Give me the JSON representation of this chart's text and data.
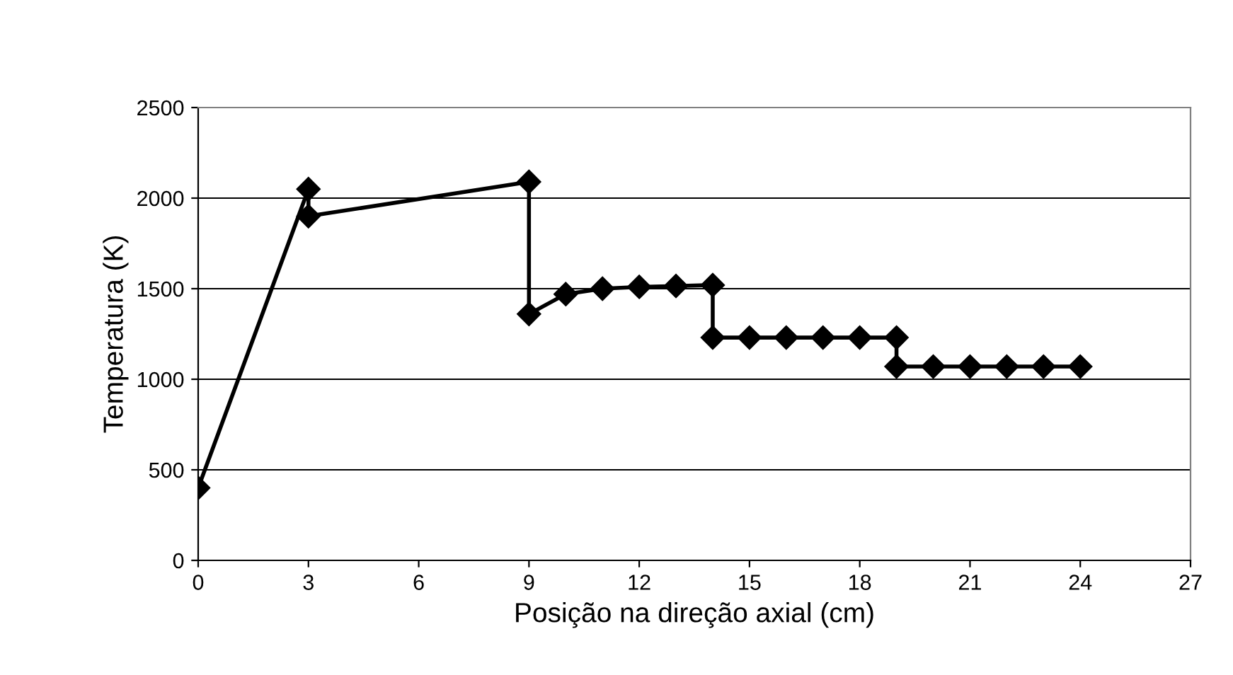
{
  "chart_data": {
    "type": "line",
    "xlabel": "Posição na direção axial (cm)",
    "ylabel": "Temperatura (K)",
    "x": [
      0,
      3,
      3,
      9,
      9,
      10,
      11,
      12,
      13,
      14,
      14,
      15,
      16,
      17,
      18,
      19,
      19,
      20,
      21,
      22,
      23,
      24
    ],
    "series": [
      {
        "color": "#000000",
        "values": [
          400,
          2050,
          1900,
          2090,
          1360,
          1470,
          1500,
          1510,
          1515,
          1520,
          1230,
          1230,
          1230,
          1230,
          1230,
          1230,
          1070,
          1070,
          1070,
          1070,
          1070,
          1070
        ]
      }
    ],
    "xlim": [
      0,
      27
    ],
    "xticks": [
      0,
      3,
      6,
      9,
      12,
      15,
      18,
      21,
      24,
      27
    ],
    "ylim": [
      0,
      2500
    ],
    "yticks": [
      0,
      500,
      1000,
      1500,
      2000,
      2500
    ],
    "grid": "y",
    "marker": "diamond",
    "line_style": "solid"
  }
}
